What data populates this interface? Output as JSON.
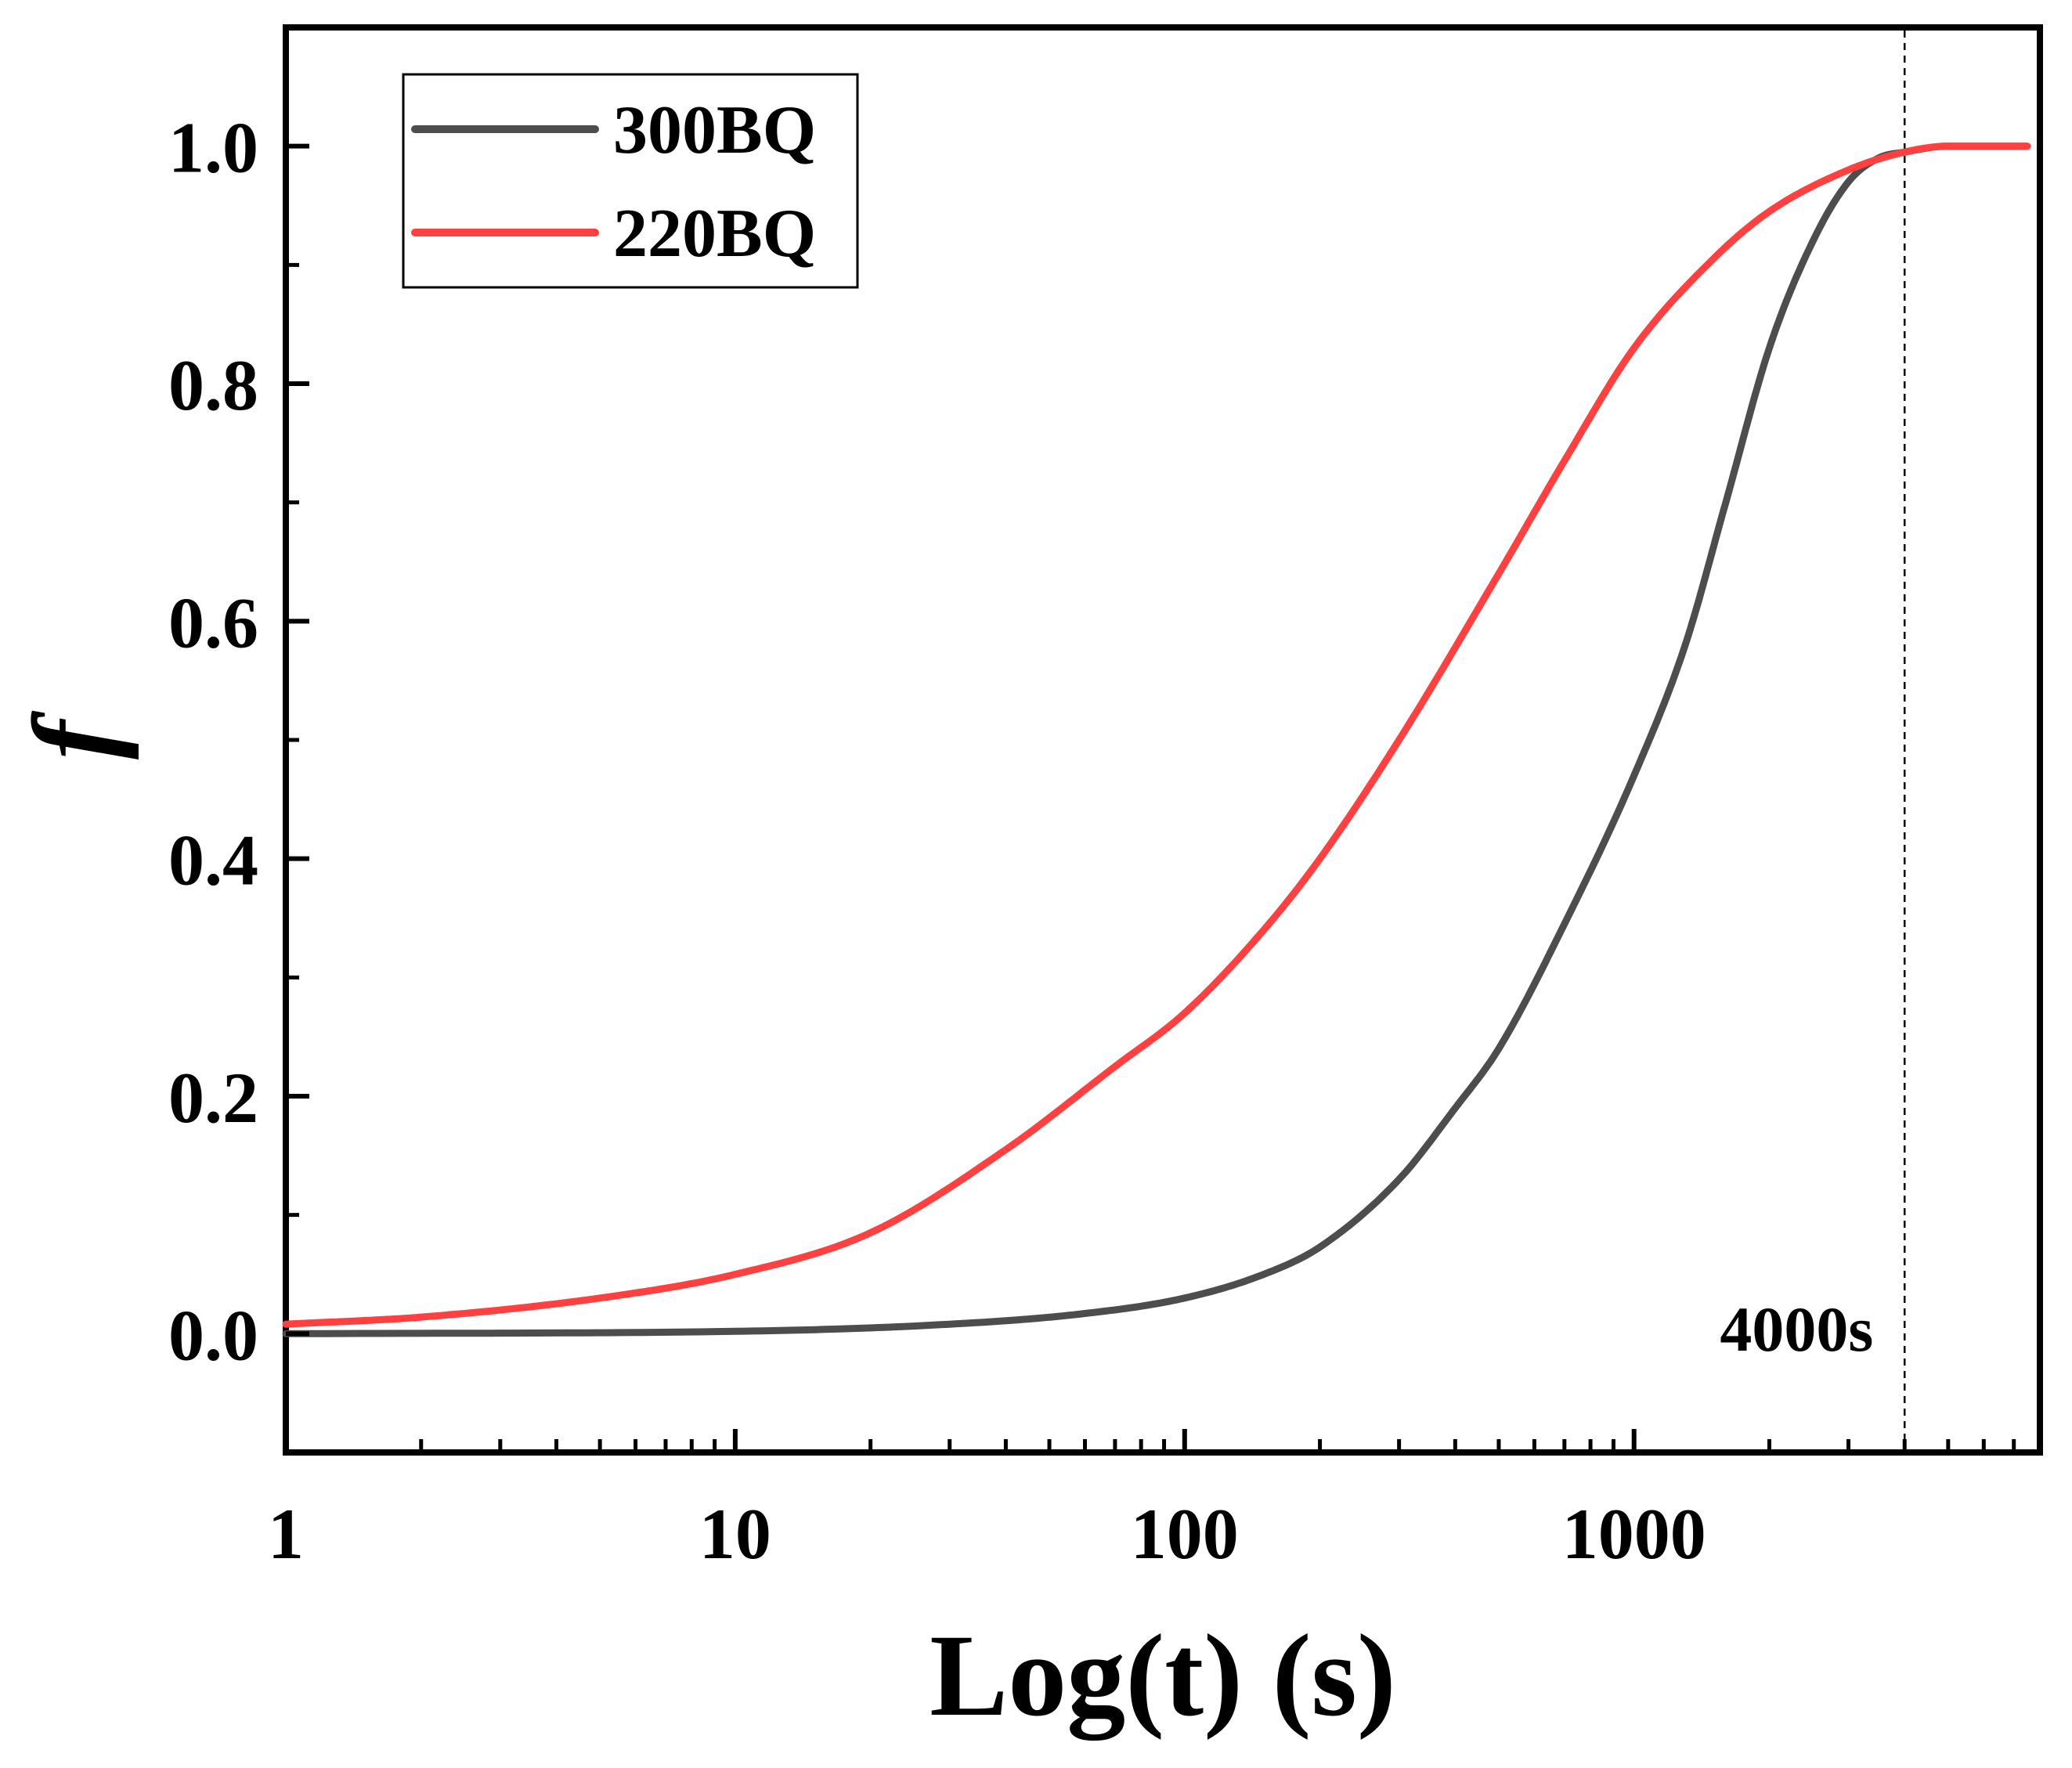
{
  "chart_data": {
    "type": "line",
    "xscale": "log",
    "xlabel": "Log(t) (s)",
    "ylabel": "f",
    "xlim": [
      1,
      8000
    ],
    "ylim": [
      -0.1,
      1.1
    ],
    "x_ticks": [
      1,
      10,
      100,
      1000
    ],
    "x_tick_labels": [
      "1",
      "10",
      "100",
      "1000"
    ],
    "y_ticks": [
      0.0,
      0.2,
      0.4,
      0.6,
      0.8,
      1.0
    ],
    "y_tick_labels": [
      "0.0",
      "0.2",
      "0.4",
      "0.6",
      "0.8",
      "1.0"
    ],
    "legend_position": "top-left",
    "series": [
      {
        "name": "300BQ",
        "color": "#4d4d4d",
        "x": [
          1,
          10,
          30,
          60,
          100,
          150,
          200,
          300,
          400,
          500,
          700,
          1000,
          1300,
          1600,
          2000,
          2500,
          3000,
          3500,
          4000,
          5000,
          6000,
          7500
        ],
        "y": [
          0.0,
          0.002,
          0.008,
          0.017,
          0.03,
          0.05,
          0.073,
          0.13,
          0.19,
          0.24,
          0.345,
          0.47,
          0.58,
          0.7,
          0.83,
          0.92,
          0.97,
          0.99,
          0.995,
          1.0,
          1.0,
          1.0
        ]
      },
      {
        "name": "220BQ",
        "color": "#ff4040",
        "x": [
          1,
          2,
          5,
          10,
          20,
          40,
          70,
          100,
          150,
          200,
          300,
          500,
          700,
          1000,
          1500,
          2000,
          3000,
          4000,
          5000,
          7500
        ],
        "y": [
          0.008,
          0.014,
          0.03,
          0.05,
          0.085,
          0.155,
          0.225,
          0.27,
          0.34,
          0.4,
          0.5,
          0.64,
          0.735,
          0.83,
          0.905,
          0.945,
          0.98,
          0.995,
          1.0,
          1.0
        ]
      }
    ],
    "annotations": [
      {
        "type": "vline",
        "x": 4000,
        "label": "4000s"
      }
    ]
  }
}
